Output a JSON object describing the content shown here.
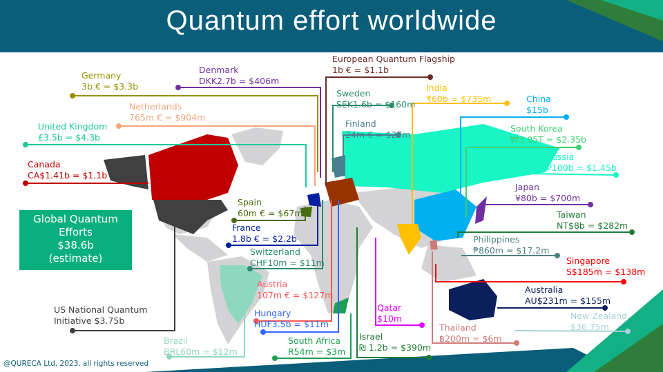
{
  "title": "Quantum effort worldwide",
  "global": {
    "line1": "Global Quantum",
    "line2": "Efforts",
    "amount": "$38.6b",
    "note": "(estimate)",
    "color": "#0aaf7e"
  },
  "copyright": "@QURECA Ltd. 2023, all rights reserved",
  "entries": {
    "germany": {
      "name": "Germany",
      "value": "3b € = $3.3b",
      "color": "#979000"
    },
    "denmark": {
      "name": "Denmark",
      "value": "DKK2.7b = $406m",
      "color": "#7030a0"
    },
    "netherlands": {
      "name": "Netherlands",
      "value": "765m € = $904m",
      "color": "#f4a47c"
    },
    "uk": {
      "name": "United Kingdom",
      "value": "£3.5b = $4.3b",
      "color": "#1ec99b"
    },
    "canada": {
      "name": "Canada",
      "value": "CA$1.41b = $1.1b",
      "color": "#c00000"
    },
    "eu": {
      "name": "European Quantum Flagship",
      "value": "1b € = $1.1b",
      "color": "#6b2b2b"
    },
    "sweden": {
      "name": "Sweden",
      "value": "SEK1.6b = $160m",
      "color": "#2e8b6e"
    },
    "finland": {
      "name": "Finland",
      "value": "24m € = $27m",
      "color": "#4a7f8f"
    },
    "india": {
      "name": "India",
      "value": "₹60b = $735m",
      "color": "#ffc000"
    },
    "china": {
      "name": "China",
      "value": "$15b",
      "color": "#00b0f0"
    },
    "south_korea": {
      "name": "South Korea",
      "value": "₩3.05T = $2.35b",
      "color": "#3fcf6f"
    },
    "russia": {
      "name": "Russia",
      "value": "₽100b = $1.45b",
      "color": "#19f5c5"
    },
    "japan": {
      "name": "Japan",
      "value": "¥80b = $700m",
      "color": "#7030a0"
    },
    "taiwan": {
      "name": "Taiwan",
      "value": "NT$8b = $282m",
      "color": "#1e7b34"
    },
    "philippines": {
      "name": "Philippines",
      "value": "₱860m = $17.2m",
      "color": "#4d8080"
    },
    "singapore": {
      "name": "Singapore",
      "value": "S$185m = $138m",
      "color": "#ff0000"
    },
    "australia": {
      "name": "Australia",
      "value": "AU$231m = $155m",
      "color": "#0b1f5c"
    },
    "new_zealand": {
      "name": "New Zealand",
      "value": "$36.75m",
      "color": "#a8d0d8"
    },
    "thailand": {
      "name": "Thailand",
      "value": "฿200m = $6m",
      "color": "#d07a7a"
    },
    "qatar": {
      "name": "Qatar",
      "value": "$10m",
      "color": "#e000ff"
    },
    "israel": {
      "name": "Israel",
      "value": "₪ 1.2b = $390m",
      "color": "#1e7b34"
    },
    "south_africa": {
      "name": "South Africa",
      "value": "R54m = $3m",
      "color": "#1aa050"
    },
    "brazil": {
      "name": "Brazil",
      "value": "BRL60m = $12m",
      "color": "#8fd8c0"
    },
    "hungary": {
      "name": "Hungary",
      "value": "HUF3.5b = $11m",
      "color": "#3366ff"
    },
    "austria": {
      "name": "Austria",
      "value": "107m € = $127m",
      "color": "#ff5555"
    },
    "switzerland": {
      "name": "Switzerland",
      "value": "CHF10m = $11m",
      "color": "#2e8b6e"
    },
    "france": {
      "name": "France",
      "value": "1.8b € = $2.2b",
      "color": "#0020a0"
    },
    "spain": {
      "name": "Spain",
      "value": "60m € = $67m",
      "color": "#4a6b10"
    },
    "usa": {
      "name": "US National Quantum",
      "value": "Initiative $3.75b",
      "color": "#404040"
    }
  }
}
